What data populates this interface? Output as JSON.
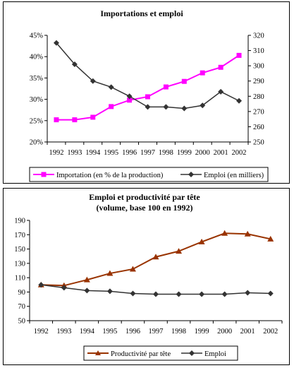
{
  "chart_data": [
    {
      "type": "line",
      "title": "Importations et emploi",
      "categories": [
        "1992",
        "1993",
        "1994",
        "1995",
        "1996",
        "1997",
        "1998",
        "1999",
        "2000",
        "2001",
        "2002"
      ],
      "y_left": {
        "ylim": [
          20,
          45
        ],
        "ticks": [
          20,
          25,
          30,
          35,
          40,
          45
        ],
        "tick_labels": [
          "20%",
          "25%",
          "30%",
          "35%",
          "40%",
          "45%"
        ]
      },
      "y_right": {
        "ylim": [
          250,
          320
        ],
        "ticks": [
          250,
          260,
          270,
          280,
          290,
          300,
          310,
          320
        ],
        "tick_labels": [
          "250",
          "260",
          "270",
          "280",
          "290",
          "300",
          "310",
          "320"
        ]
      },
      "series": [
        {
          "name": "Importation (en % de la production)",
          "axis": "left",
          "color": "#ff00ff",
          "marker": "square",
          "values": [
            25.2,
            25.2,
            25.8,
            28.3,
            29.8,
            30.6,
            32.9,
            34.2,
            36.2,
            37.5,
            40.3
          ]
        },
        {
          "name": "Emploi (en milliers)",
          "axis": "right",
          "color": "#333333",
          "marker": "diamond",
          "values": [
            315,
            301,
            290,
            286,
            280,
            273,
            273,
            272,
            274,
            283,
            277
          ]
        }
      ],
      "grid": false,
      "legend_position": "bottom"
    },
    {
      "type": "line",
      "title": "Emploi et productivité par tête",
      "subtitle": "(volume, base 100 en 1992)",
      "categories": [
        "1992",
        "1993",
        "1994",
        "1995",
        "1996",
        "1997",
        "1998",
        "1999",
        "2000",
        "2001",
        "2002"
      ],
      "ylim": [
        50,
        190
      ],
      "ticks": [
        50,
        70,
        90,
        110,
        130,
        150,
        170,
        190
      ],
      "tick_labels": [
        "50",
        "70",
        "90",
        "110",
        "130",
        "150",
        "170",
        "190"
      ],
      "series": [
        {
          "name": "Productivité par tête",
          "color": "#993300",
          "marker": "triangle",
          "values": [
            100,
            99,
            107,
            116,
            122,
            139,
            147,
            160,
            172,
            171,
            164
          ]
        },
        {
          "name": "Emploi",
          "color": "#333333",
          "marker": "diamond",
          "values": [
            100,
            96,
            92,
            91,
            88,
            87,
            87,
            87,
            87,
            89,
            88
          ]
        }
      ],
      "grid": false,
      "legend_position": "bottom"
    }
  ]
}
